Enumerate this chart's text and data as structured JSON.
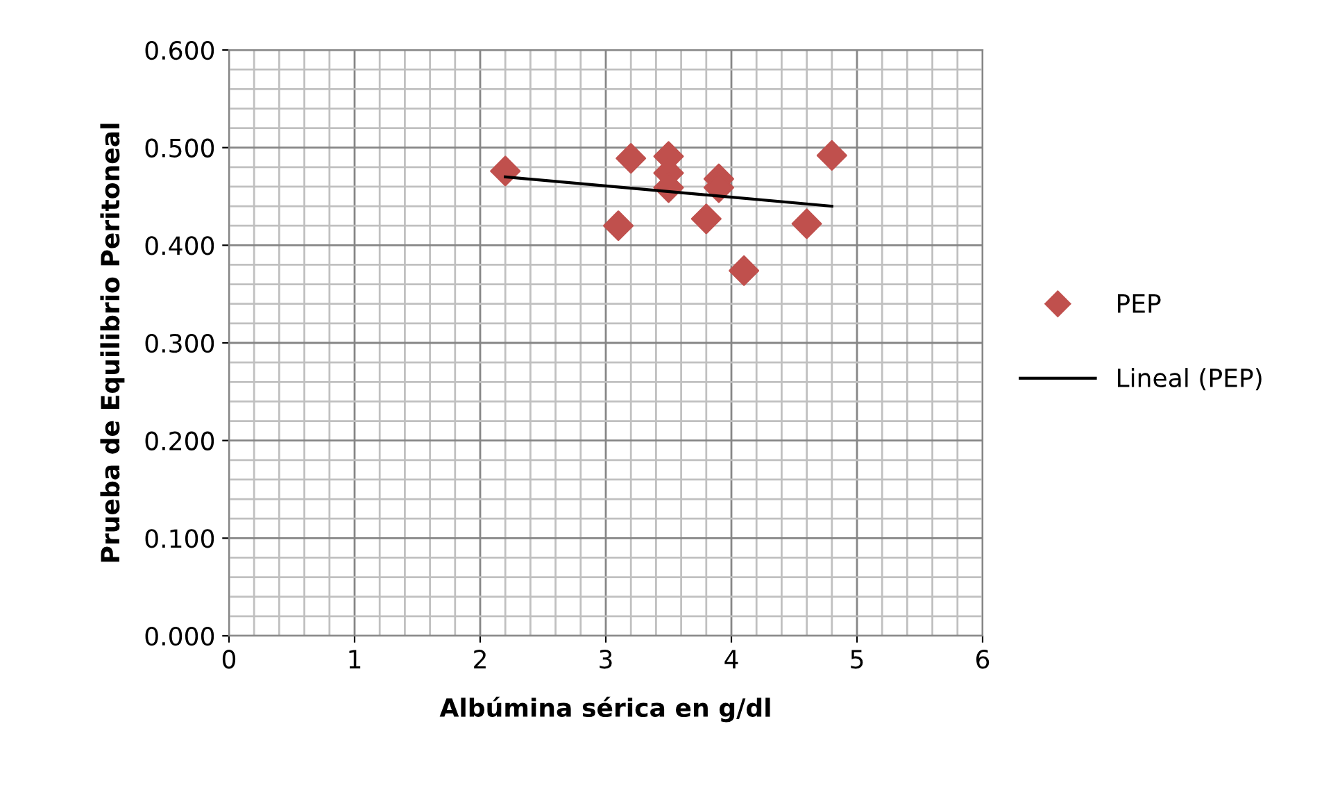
{
  "chart_data": {
    "type": "scatter",
    "xlabel": "Albúmina sérica en g/dl",
    "ylabel": "Prueba de Equilibrio Peritoneal",
    "xlim": [
      0,
      6
    ],
    "xticks": [
      0,
      1,
      2,
      3,
      4,
      5,
      6
    ],
    "ylim": [
      0,
      0.6
    ],
    "yticks": [
      {
        "value": 0,
        "label": "0.000"
      },
      {
        "value": 0.1,
        "label": "0.100"
      },
      {
        "value": 0.2,
        "label": "0.200"
      },
      {
        "value": 0.3,
        "label": "0.300"
      },
      {
        "value": 0.4,
        "label": "0.400"
      },
      {
        "value": 0.5,
        "label": "0.500"
      },
      {
        "value": 0.6,
        "label": "0.600"
      }
    ],
    "grid": true,
    "legend": "right",
    "series": [
      {
        "name": "PEP",
        "marker": "diamond",
        "color": "#c0504d",
        "x": [
          2.2,
          3.1,
          3.2,
          3.5,
          3.5,
          3.5,
          3.8,
          3.9,
          3.9,
          4.1,
          4.6,
          4.8
        ],
        "values": [
          0.476,
          0.42,
          0.489,
          0.491,
          0.474,
          0.459,
          0.427,
          0.468,
          0.459,
          0.374,
          0.422,
          0.492
        ]
      },
      {
        "name": "Lineal (PEP)",
        "type": "line",
        "color": "#000000",
        "x": [
          2.2,
          4.8
        ],
        "values": [
          0.47,
          0.44
        ]
      }
    ]
  }
}
